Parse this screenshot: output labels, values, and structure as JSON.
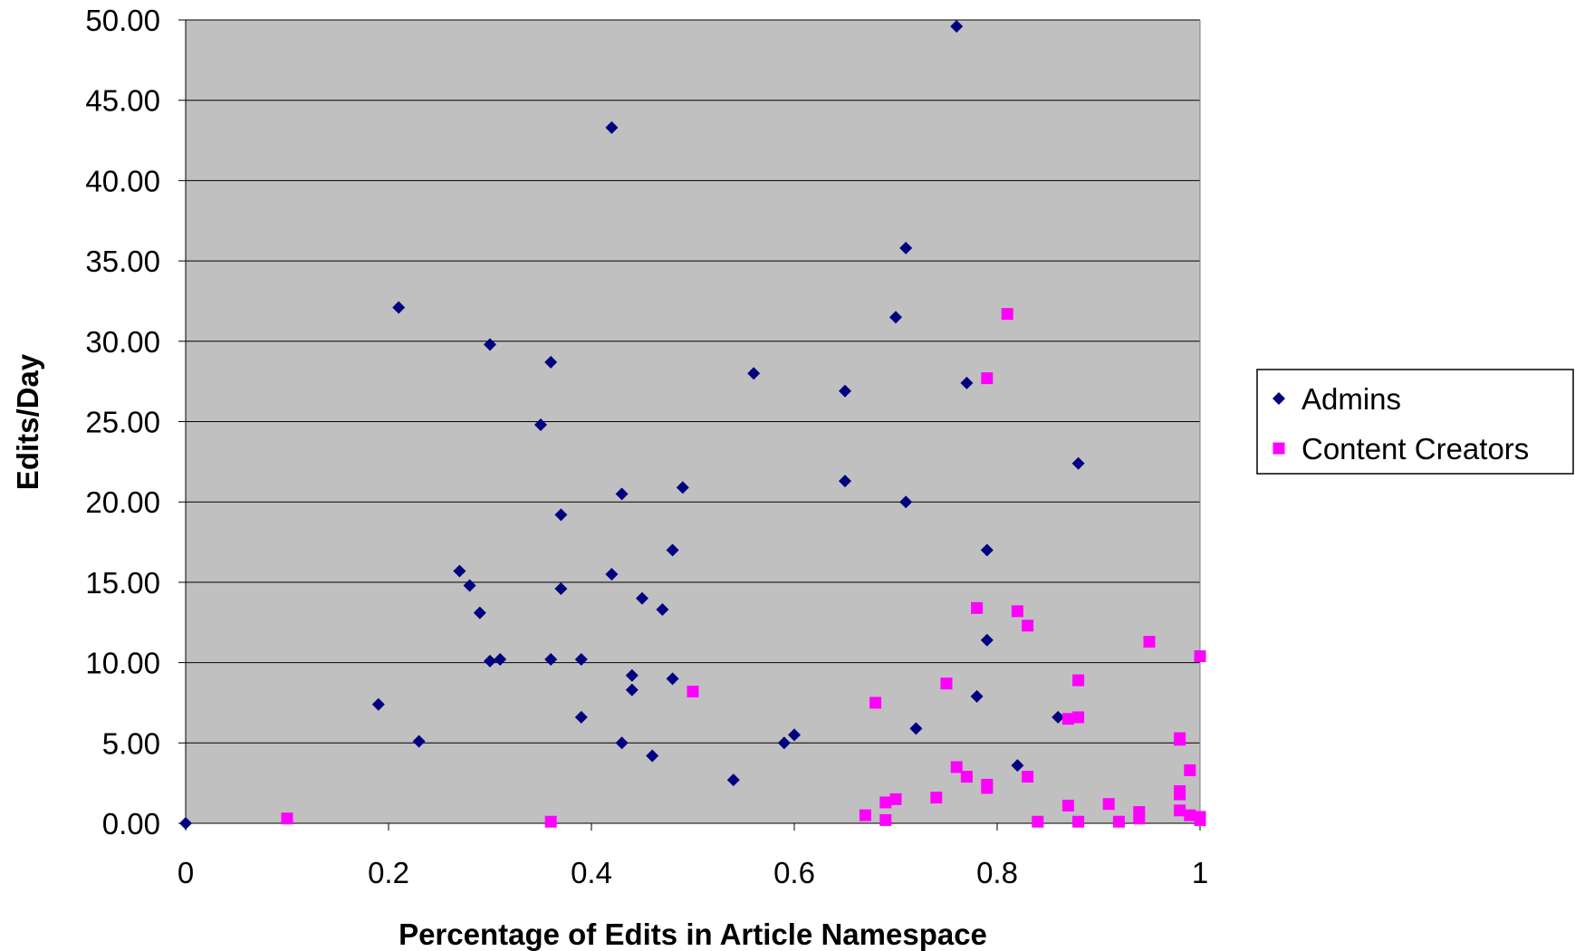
{
  "chart_data": {
    "type": "scatter",
    "title": "",
    "xlabel": "Percentage of Edits in Article Namespace",
    "ylabel": "Edits/Day",
    "xlim": [
      0,
      1
    ],
    "ylim": [
      0,
      50
    ],
    "xticks": [
      "0",
      "0.2",
      "0.4",
      "0.6",
      "0.8",
      "1"
    ],
    "yticks": [
      "0.00",
      "5.00",
      "10.00",
      "15.00",
      "20.00",
      "25.00",
      "30.00",
      "35.00",
      "40.00",
      "45.00",
      "50.00"
    ],
    "grid": "horizontal",
    "legend_position": "right",
    "background_color": "#c0c0c0",
    "series": [
      {
        "name": "Admins",
        "marker": "diamond",
        "color": "#000080",
        "points": [
          [
            0.0,
            0.0
          ],
          [
            0.19,
            7.4
          ],
          [
            0.21,
            32.1
          ],
          [
            0.23,
            5.1
          ],
          [
            0.27,
            15.7
          ],
          [
            0.28,
            14.8
          ],
          [
            0.29,
            13.1
          ],
          [
            0.3,
            29.8
          ],
          [
            0.3,
            10.1
          ],
          [
            0.31,
            10.2
          ],
          [
            0.35,
            24.8
          ],
          [
            0.36,
            28.7
          ],
          [
            0.36,
            10.2
          ],
          [
            0.37,
            19.2
          ],
          [
            0.37,
            14.6
          ],
          [
            0.39,
            10.2
          ],
          [
            0.39,
            6.6
          ],
          [
            0.42,
            43.3
          ],
          [
            0.42,
            15.5
          ],
          [
            0.43,
            20.5
          ],
          [
            0.43,
            5.0
          ],
          [
            0.44,
            8.3
          ],
          [
            0.44,
            9.2
          ],
          [
            0.45,
            14.0
          ],
          [
            0.46,
            4.2
          ],
          [
            0.47,
            13.3
          ],
          [
            0.48,
            17.0
          ],
          [
            0.48,
            9.0
          ],
          [
            0.49,
            20.9
          ],
          [
            0.54,
            2.7
          ],
          [
            0.56,
            28.0
          ],
          [
            0.59,
            5.0
          ],
          [
            0.6,
            5.5
          ],
          [
            0.65,
            26.9
          ],
          [
            0.65,
            21.3
          ],
          [
            0.7,
            31.5
          ],
          [
            0.71,
            35.8
          ],
          [
            0.71,
            20.0
          ],
          [
            0.72,
            5.9
          ],
          [
            0.76,
            49.6
          ],
          [
            0.77,
            27.4
          ],
          [
            0.78,
            7.9
          ],
          [
            0.79,
            17.0
          ],
          [
            0.79,
            11.4
          ],
          [
            0.82,
            3.6
          ],
          [
            0.86,
            6.6
          ],
          [
            0.88,
            22.4
          ]
        ]
      },
      {
        "name": "Content Creators",
        "marker": "square",
        "color": "#ff00ff",
        "points": [
          [
            0.1,
            0.3
          ],
          [
            0.36,
            0.1
          ],
          [
            0.5,
            8.2
          ],
          [
            0.67,
            0.5
          ],
          [
            0.68,
            7.5
          ],
          [
            0.69,
            0.2
          ],
          [
            0.69,
            1.3
          ],
          [
            0.7,
            1.5
          ],
          [
            0.74,
            1.6
          ],
          [
            0.75,
            8.7
          ],
          [
            0.76,
            3.5
          ],
          [
            0.77,
            2.9
          ],
          [
            0.78,
            13.4
          ],
          [
            0.79,
            2.2
          ],
          [
            0.79,
            2.4
          ],
          [
            0.79,
            27.7
          ],
          [
            0.81,
            31.7
          ],
          [
            0.82,
            13.2
          ],
          [
            0.83,
            12.3
          ],
          [
            0.83,
            2.9
          ],
          [
            0.84,
            0.1
          ],
          [
            0.87,
            1.1
          ],
          [
            0.87,
            6.5
          ],
          [
            0.88,
            6.6
          ],
          [
            0.88,
            8.9
          ],
          [
            0.88,
            0.1
          ],
          [
            0.91,
            1.2
          ],
          [
            0.92,
            0.1
          ],
          [
            0.94,
            0.3
          ],
          [
            0.94,
            0.7
          ],
          [
            0.95,
            11.3
          ],
          [
            0.98,
            0.8
          ],
          [
            0.98,
            1.8
          ],
          [
            0.98,
            2.0
          ],
          [
            0.98,
            5.2
          ],
          [
            0.98,
            5.3
          ],
          [
            0.99,
            3.3
          ],
          [
            0.99,
            0.5
          ],
          [
            1.0,
            0.2
          ],
          [
            1.0,
            0.4
          ],
          [
            1.0,
            10.4
          ]
        ]
      }
    ]
  }
}
